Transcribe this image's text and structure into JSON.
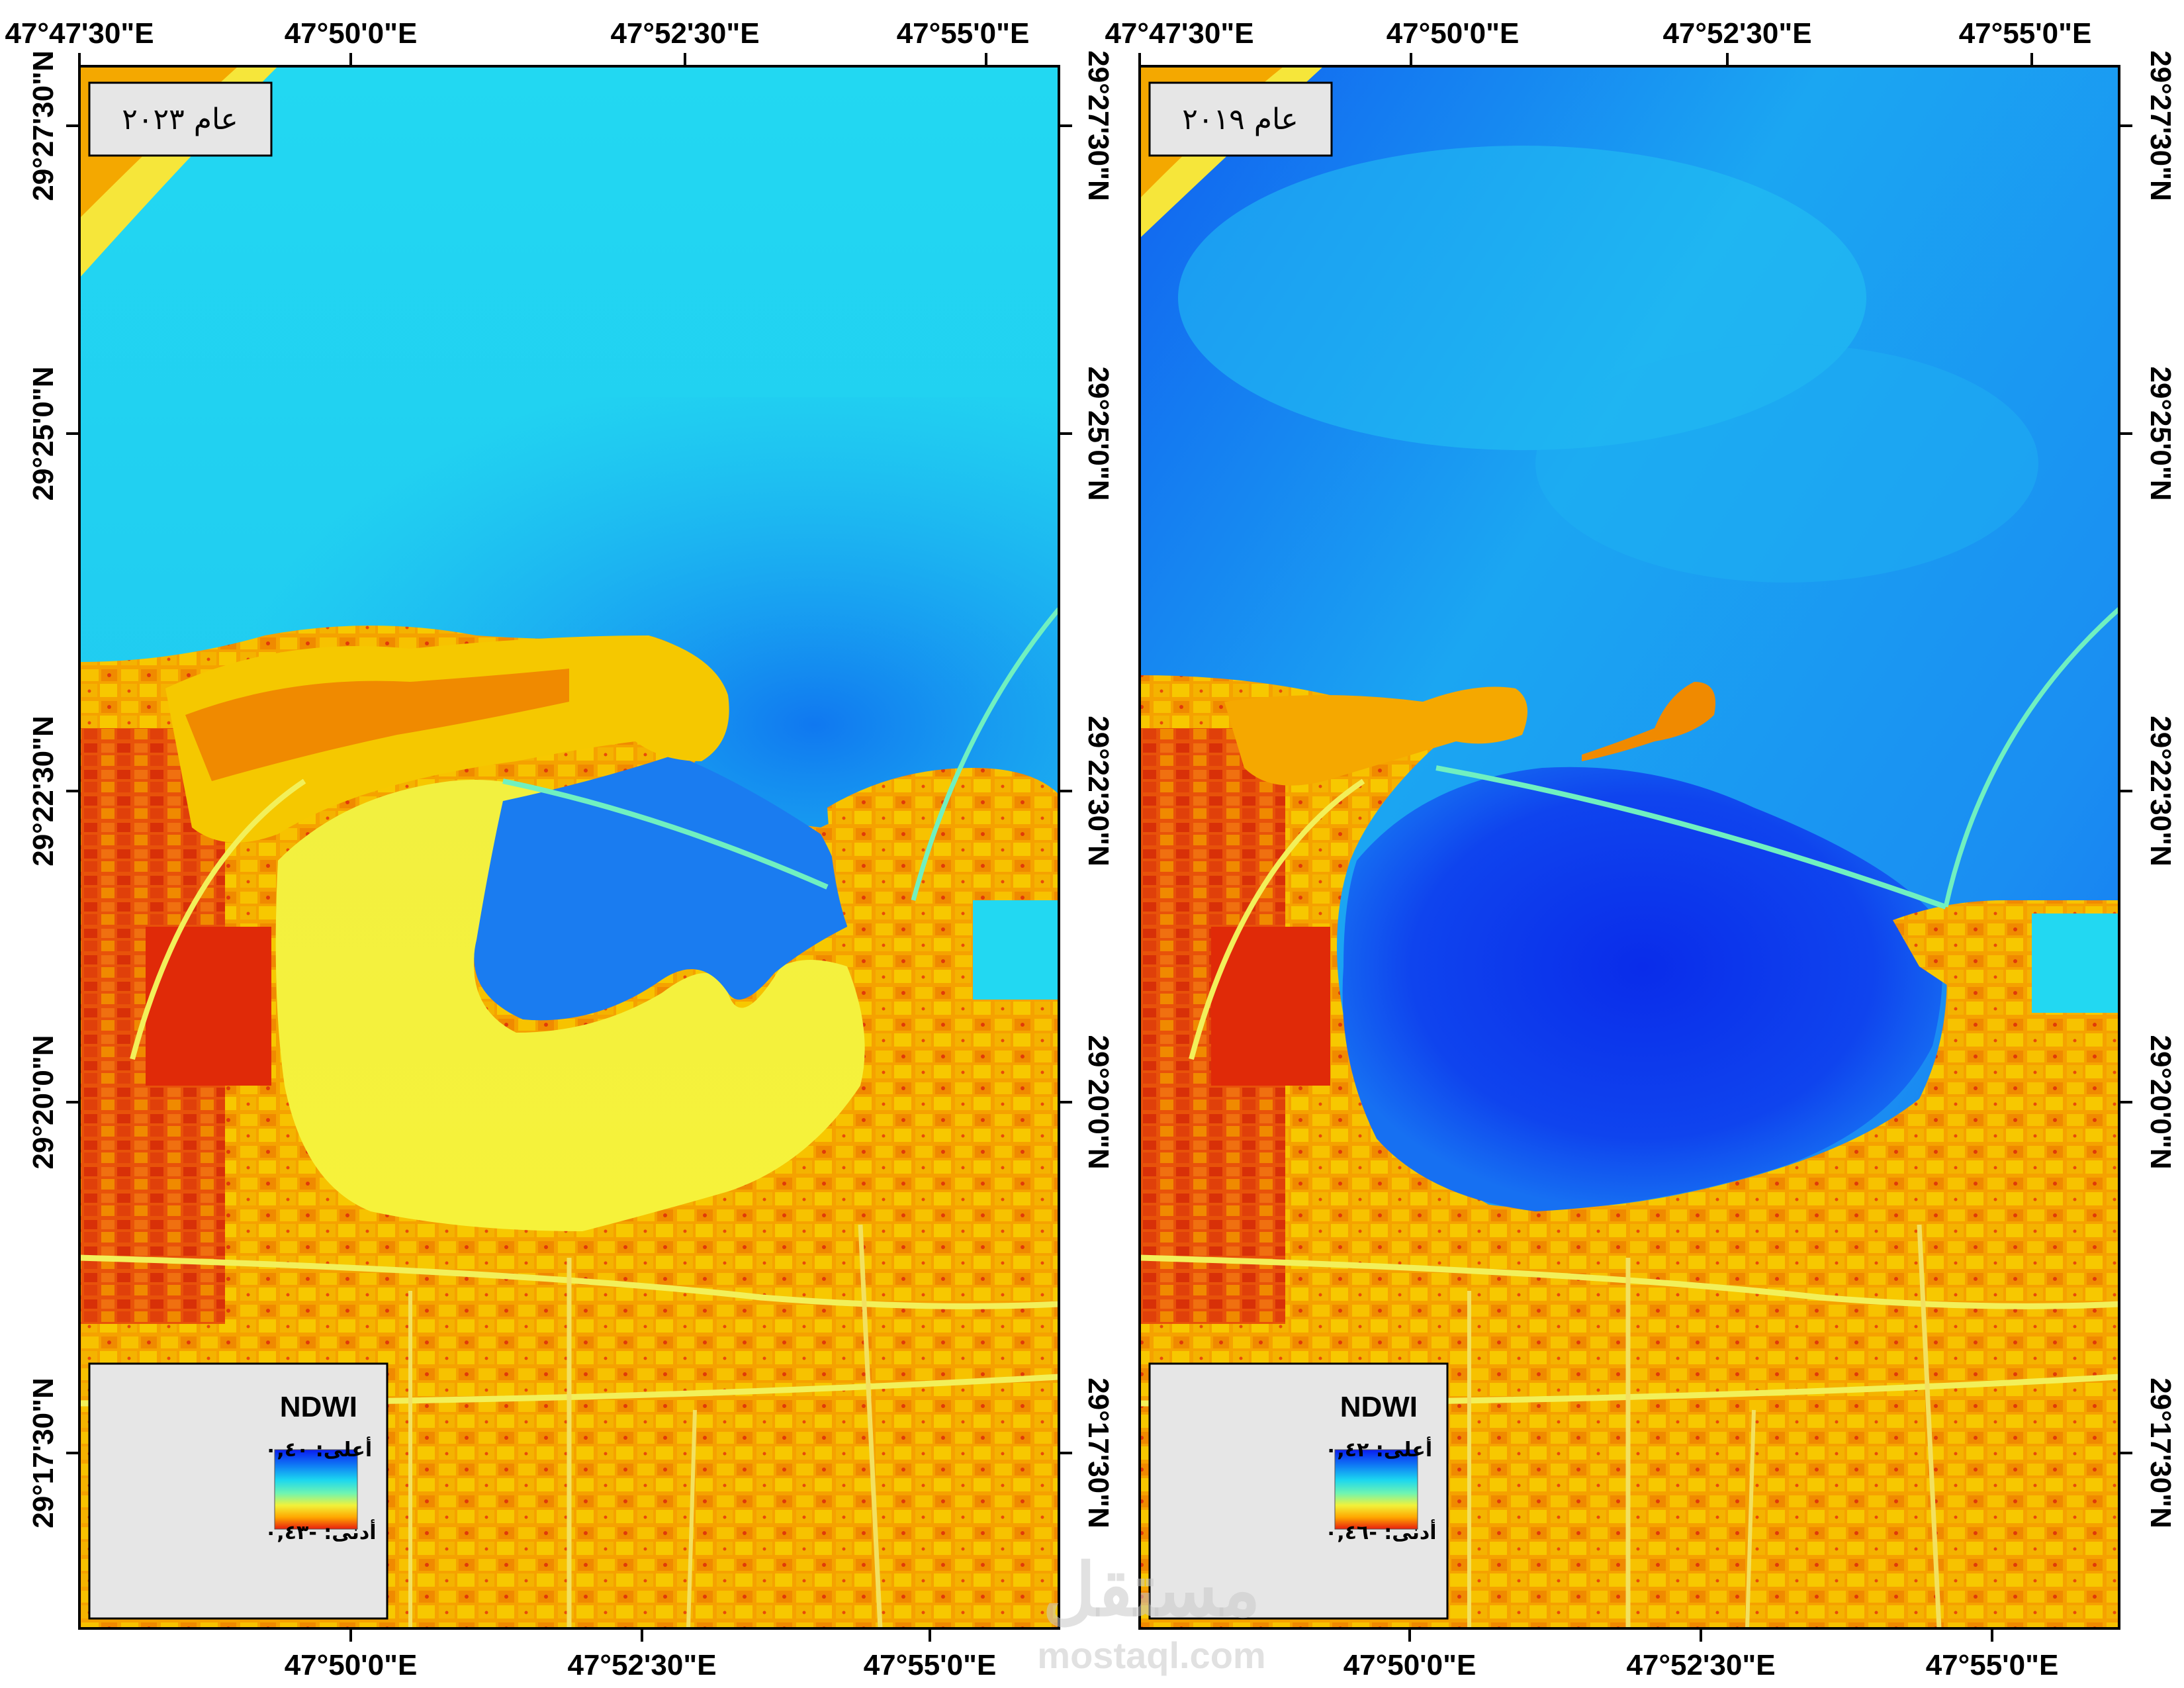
{
  "index_name": "NDWI",
  "panels": [
    {
      "id": "left",
      "year_label": "عام ٢٠٢٣",
      "legend": {
        "title": "NDWI",
        "max_label": "أعلى: ٠,٤٠",
        "min_label": "أدنى: -٠,٤٣",
        "max_value": 0.4,
        "min_value": -0.43
      },
      "top_lon_labels": [
        "47°47'30\"E",
        "47°50'0\"E",
        "47°52'30\"E",
        "47°55'0\"E"
      ],
      "bottom_lon_labels": [
        "47°50'0\"E",
        "47°52'30\"E",
        "47°55'0\"E"
      ],
      "lat_labels": [
        "29°27'30\"N",
        "29°25'0\"N",
        "29°22'30\"N",
        "29°20'0\"N",
        "29°17'30\"N"
      ]
    },
    {
      "id": "right",
      "year_label": "عام ٢٠١٩",
      "legend": {
        "title": "NDWI",
        "max_label": "أعلى: ٠,٤٢",
        "min_label": "أدنى: -٠,٤٦",
        "max_value": 0.42,
        "min_value": -0.46
      },
      "top_lon_labels": [
        "47°47'30\"E",
        "47°50'0\"E",
        "47°52'30\"E",
        "47°55'0\"E"
      ],
      "bottom_lon_labels": [
        "47°50'0\"E",
        "47°52'30\"E",
        "47°55'0\"E"
      ],
      "lat_labels": [
        "29°27'30\"N",
        "29°25'0\"N",
        "29°22'30\"N",
        "29°20'0\"N",
        "29°17'30\"N"
      ]
    }
  ],
  "colormap": [
    "#0a1cf0",
    "#0f6cf5",
    "#1bc6f5",
    "#55f2d8",
    "#f2f23a",
    "#ffb400",
    "#f03a10"
  ],
  "watermark": {
    "arabic": "مستقل",
    "latin": "mostaql.com"
  }
}
